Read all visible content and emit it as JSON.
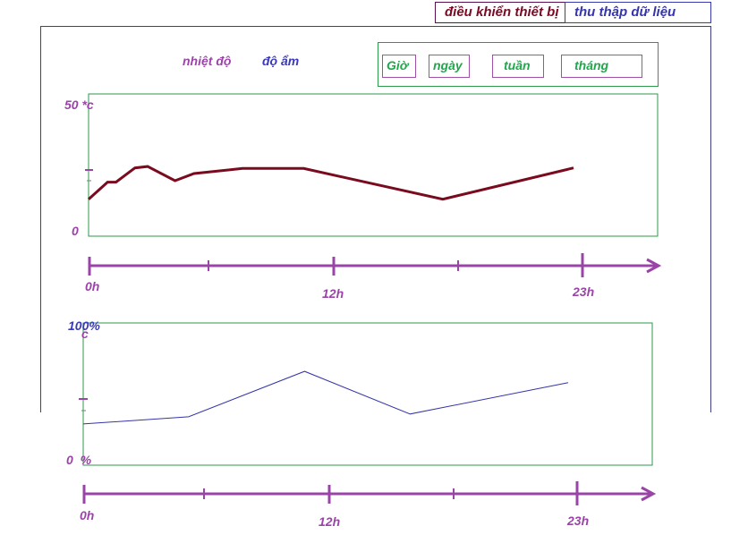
{
  "tabs": [
    {
      "id": "control",
      "label": "điều khiển thiết bị"
    },
    {
      "id": "collect",
      "label": "thu thập dữ liệu"
    }
  ],
  "legend": {
    "temperature": "nhiệt độ",
    "humidity": "độ ẩm"
  },
  "periods": [
    "Giờ",
    "ngày",
    "tuần",
    "tháng"
  ],
  "colors": {
    "temperature_line": "#7a0a1e",
    "humidity_line": "#3535a8",
    "axis": "#9b44a8",
    "plot_border": "#2e9a4a"
  },
  "chart_data": [
    {
      "type": "line",
      "title": "",
      "ylim": [
        0,
        50
      ],
      "y_max_label": "50 *c",
      "y_min_label": "0",
      "x_tick_labels": [
        "0h",
        "12h",
        "23h"
      ],
      "xlim": [
        0,
        23
      ],
      "series": [
        {
          "x": [
            0,
            0.9,
            1.3,
            2.2,
            2.8,
            4.1,
            5.0,
            7.3,
            10.2,
            16.8,
            23
          ],
          "y": [
            13,
            19,
            19,
            24,
            24.5,
            19.5,
            22,
            23.8,
            23.8,
            13,
            24
          ]
        }
      ]
    },
    {
      "type": "line",
      "title": "",
      "ylim": [
        0,
        100
      ],
      "y_max_label": "100%",
      "y_min_label": "0  %",
      "x_tick_labels": [
        "0h",
        "12h",
        "23h"
      ],
      "xlim": [
        0,
        23
      ],
      "series": [
        {
          "x": [
            0,
            5,
            10.5,
            15.5,
            23
          ],
          "y": [
            29,
            34,
            66,
            36,
            58
          ]
        }
      ]
    }
  ]
}
